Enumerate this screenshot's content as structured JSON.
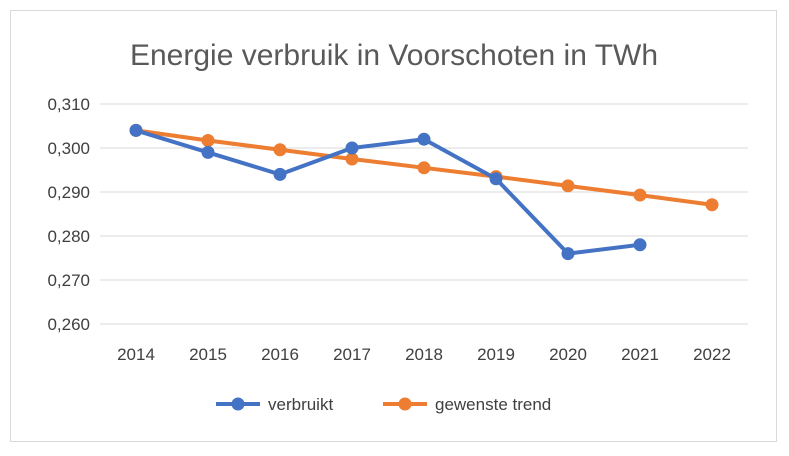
{
  "chart_data": {
    "type": "line",
    "title": "Energie verbruik in Voorschoten in TWh",
    "xlabel": "",
    "ylabel": "",
    "x": [
      "2014",
      "2015",
      "2016",
      "2017",
      "2018",
      "2019",
      "2020",
      "2021",
      "2022"
    ],
    "ylim": [
      0.26,
      0.31
    ],
    "yticks": [
      "0,260",
      "0,270",
      "0,280",
      "0,290",
      "0,300",
      "0,310"
    ],
    "grid": true,
    "legend_position": "bottom",
    "series": [
      {
        "name": "verbruikt",
        "color": "#4472c4",
        "values": [
          0.304,
          0.299,
          0.294,
          0.3,
          0.302,
          0.293,
          0.276,
          0.278,
          null
        ]
      },
      {
        "name": "gewenste trend",
        "color": "#ed7d31",
        "values": [
          0.304,
          0.3017,
          0.2996,
          0.2975,
          0.2955,
          0.2935,
          0.2914,
          0.2893,
          0.2871
        ]
      }
    ]
  }
}
